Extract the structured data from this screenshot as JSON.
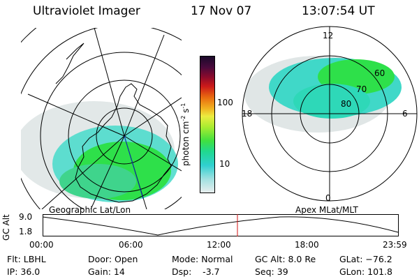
{
  "header": {
    "instrument": "Ultraviolet Imager",
    "date": "17 Nov 07",
    "time": "13:07:54 UT"
  },
  "colorbar": {
    "label": "photon cm",
    "label_sup1": "-2",
    "label_mid": "s",
    "label_sup2": "-1",
    "ticks": [
      "100",
      "10"
    ]
  },
  "polar_plot": {
    "mlt_labels": [
      "12",
      "18",
      "6",
      "0"
    ],
    "mlat_labels": [
      "60",
      "70",
      "80"
    ]
  },
  "panels": {
    "left_caption": "Geographic Lat/Lon",
    "right_caption": "Apex MLat/MLT"
  },
  "altitude_plot": {
    "ylabel": "GC Alt",
    "y_ticks": [
      "9.0",
      "1.8"
    ],
    "x_ticks": [
      "00:00",
      "06:00",
      "12:00",
      "18:00",
      "23:59"
    ]
  },
  "info": {
    "flt": "Flt: LBHL",
    "ip": "IP: 36.0",
    "door": "Door: Open",
    "gain": "Gain: 14",
    "mode": "Mode: Normal",
    "dsp": "Dsp:    -3.7",
    "gcalt": "GC Alt: 8.0 Re",
    "seq": "Seq: 39",
    "glat": "GLat: −76.2",
    "glon": "GLon: 101.8"
  },
  "colors": {
    "cursor": "#d01010",
    "aurora_bright": "#2ee04a",
    "aurora_mid": "#2fd4c8",
    "aurora_faint": "#d6e2e2"
  }
}
